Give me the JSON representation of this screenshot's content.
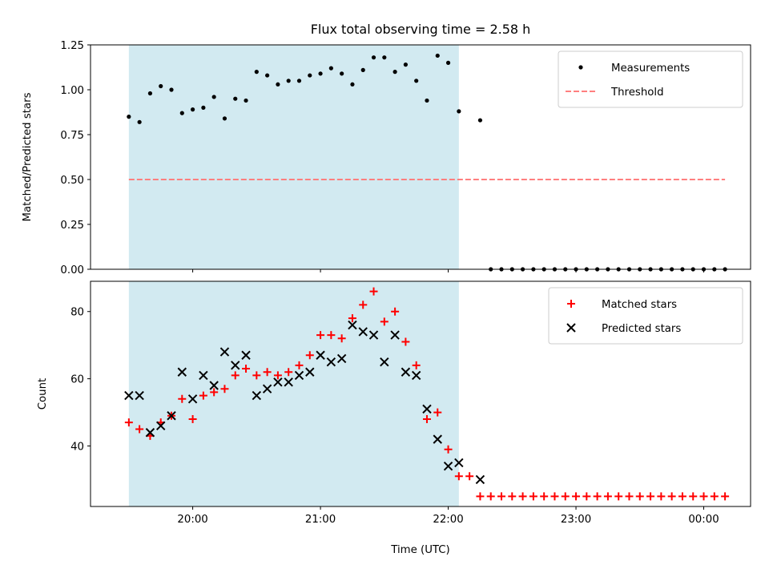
{
  "chart_data": [
    {
      "type": "scatter",
      "title": "Flux total observing time = 2.58 h",
      "ylabel": "Matched/Predicted stars",
      "xlabel": "",
      "ylim": [
        0,
        1.25
      ],
      "y_ticks": [
        "0.00",
        "0.25",
        "0.50",
        "0.75",
        "1.00",
        "1.25"
      ],
      "y_tick_values": [
        0,
        0.25,
        0.5,
        0.75,
        1.0,
        1.25
      ],
      "legend_position": "top-right",
      "shaded_interval": [
        "19:30",
        "22:05"
      ],
      "threshold_line": {
        "name": "Threshold",
        "y": 0.5,
        "x_range": [
          "19:30",
          "00:10"
        ],
        "color": "#ff7f7f"
      },
      "series": [
        {
          "name": "Measurements",
          "marker": "dot",
          "color": "#000000",
          "x": [
            "19:30",
            "19:35",
            "19:40",
            "19:45",
            "19:50",
            "19:55",
            "20:00",
            "20:05",
            "20:10",
            "20:15",
            "20:20",
            "20:25",
            "20:30",
            "20:35",
            "20:40",
            "20:45",
            "20:50",
            "20:55",
            "21:00",
            "21:05",
            "21:10",
            "21:15",
            "21:20",
            "21:25",
            "21:30",
            "21:35",
            "21:40",
            "21:45",
            "21:50",
            "21:55",
            "22:00",
            "22:05",
            "22:15",
            "22:20",
            "22:25",
            "22:30",
            "22:35",
            "22:40",
            "22:45",
            "22:50",
            "22:55",
            "23:00",
            "23:05",
            "23:10",
            "23:15",
            "23:20",
            "23:25",
            "23:30",
            "23:35",
            "23:40",
            "23:45",
            "23:50",
            "23:55",
            "00:00",
            "00:05",
            "00:10"
          ],
          "y": [
            0.85,
            0.82,
            0.98,
            1.02,
            1.0,
            0.87,
            0.89,
            0.9,
            0.96,
            0.84,
            0.95,
            0.94,
            1.1,
            1.08,
            1.03,
            1.05,
            1.05,
            1.08,
            1.09,
            1.12,
            1.09,
            1.03,
            1.11,
            1.18,
            1.18,
            1.1,
            1.14,
            1.05,
            0.94,
            1.19,
            1.15,
            0.88,
            0.83,
            0,
            0,
            0,
            0,
            0,
            0,
            0,
            0,
            0,
            0,
            0,
            0,
            0,
            0,
            0,
            0,
            0,
            0,
            0,
            0,
            0,
            0,
            0
          ]
        }
      ]
    },
    {
      "type": "scatter",
      "title": "",
      "ylabel": "Count",
      "xlabel": "Time (UTC)",
      "ylim": [
        22,
        89
      ],
      "y_ticks": [
        "40",
        "60",
        "80"
      ],
      "y_tick_values": [
        40,
        60,
        80
      ],
      "xlim": [
        "19:12",
        "00:22"
      ],
      "x_ticks": [
        "20:00",
        "21:00",
        "22:00",
        "23:00",
        "00:00"
      ],
      "x_tick_values": [
        "20:00",
        "21:00",
        "22:00",
        "23:00",
        "00:00"
      ],
      "legend_position": "top-right",
      "shaded_interval": [
        "19:30",
        "22:05"
      ],
      "series": [
        {
          "name": "Matched stars",
          "marker": "plus",
          "color": "#ff0000",
          "x": [
            "19:30",
            "19:35",
            "19:40",
            "19:45",
            "19:50",
            "19:55",
            "20:00",
            "20:05",
            "20:10",
            "20:15",
            "20:20",
            "20:25",
            "20:30",
            "20:35",
            "20:40",
            "20:45",
            "20:50",
            "20:55",
            "21:00",
            "21:05",
            "21:10",
            "21:15",
            "21:20",
            "21:25",
            "21:30",
            "21:35",
            "21:40",
            "21:45",
            "21:50",
            "21:55",
            "22:00",
            "22:05",
            "22:10",
            "22:15",
            "22:20",
            "22:25",
            "22:30",
            "22:35",
            "22:40",
            "22:45",
            "22:50",
            "22:55",
            "23:00",
            "23:05",
            "23:10",
            "23:15",
            "23:20",
            "23:25",
            "23:30",
            "23:35",
            "23:40",
            "23:45",
            "23:50",
            "23:55",
            "00:00",
            "00:05",
            "00:10"
          ],
          "y": [
            47,
            45,
            43,
            47,
            49,
            54,
            48,
            55,
            56,
            57,
            61,
            63,
            61,
            62,
            61,
            62,
            64,
            67,
            73,
            73,
            72,
            78,
            82,
            86,
            77,
            80,
            71,
            64,
            48,
            50,
            39,
            31,
            31,
            25,
            25,
            25,
            25,
            25,
            25,
            25,
            25,
            25,
            25,
            25,
            25,
            25,
            25,
            25,
            25,
            25,
            25,
            25,
            25,
            25,
            25,
            25,
            25
          ]
        },
        {
          "name": "Predicted stars",
          "marker": "x",
          "color": "#000000",
          "x": [
            "19:30",
            "19:35",
            "19:40",
            "19:45",
            "19:50",
            "19:55",
            "20:00",
            "20:05",
            "20:10",
            "20:15",
            "20:20",
            "20:25",
            "20:30",
            "20:35",
            "20:40",
            "20:45",
            "20:50",
            "20:55",
            "21:00",
            "21:05",
            "21:10",
            "21:15",
            "21:20",
            "21:25",
            "21:30",
            "21:35",
            "21:40",
            "21:45",
            "21:50",
            "21:55",
            "22:00",
            "22:05",
            "22:15"
          ],
          "y": [
            55,
            55,
            44,
            46,
            49,
            62,
            54,
            61,
            58,
            68,
            64,
            67,
            55,
            57,
            59,
            59,
            61,
            62,
            67,
            65,
            66,
            76,
            74,
            73,
            65,
            73,
            62,
            61,
            51,
            42,
            34,
            35,
            30
          ]
        }
      ]
    }
  ]
}
